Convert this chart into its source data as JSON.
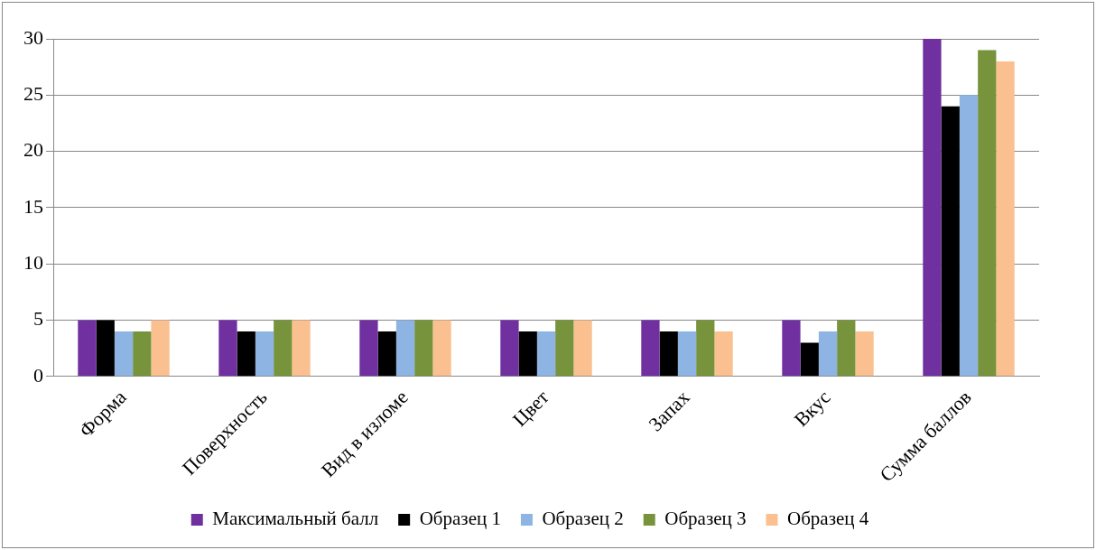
{
  "chart_data": {
    "type": "bar",
    "categories": [
      "Форма",
      "Поверхность",
      "Вид в изломе",
      "Цвет",
      "Запах",
      "Вкус",
      "Сумма баллов"
    ],
    "series": [
      {
        "name": "Максимальный балл",
        "color": "#7030a0",
        "values": [
          5,
          5,
          5,
          5,
          5,
          5,
          30
        ]
      },
      {
        "name": "Образец 1",
        "color": "#000000",
        "values": [
          5,
          4,
          4,
          4,
          4,
          3,
          24
        ]
      },
      {
        "name": "Образец 2",
        "color": "#8db4e2",
        "values": [
          4,
          4,
          5,
          4,
          4,
          4,
          25
        ]
      },
      {
        "name": "Образец 3",
        "color": "#77933c",
        "values": [
          4,
          5,
          5,
          5,
          5,
          5,
          29
        ]
      },
      {
        "name": "Образец 4",
        "color": "#fac090",
        "values": [
          5,
          5,
          5,
          5,
          4,
          4,
          28
        ]
      }
    ],
    "ylim": [
      0,
      30
    ],
    "yticks": [
      0,
      5,
      10,
      15,
      20,
      25,
      30
    ],
    "grid": "y",
    "legend": "bottom"
  }
}
